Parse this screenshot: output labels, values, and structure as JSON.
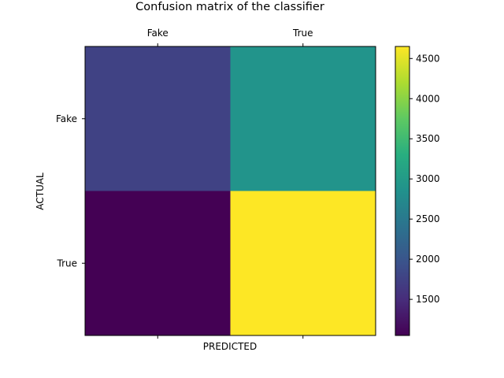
{
  "chart_data": {
    "type": "heatmap",
    "title": "Confusion matrix of the classifier",
    "xlabel": "PREDICTED",
    "ylabel": "ACTUAL",
    "x_categories": [
      "Fake",
      "True"
    ],
    "y_categories": [
      "Fake",
      "True"
    ],
    "values": [
      [
        1750,
        2900
      ],
      [
        1050,
        4650
      ]
    ],
    "colormap": "viridis",
    "colorbar": {
      "range": [
        1050,
        4650
      ],
      "ticks": [
        1500,
        2000,
        2500,
        3000,
        3500,
        4000,
        4500
      ],
      "tick_labels": [
        "1500",
        "2000",
        "2500",
        "3000",
        "3500",
        "4000",
        "4500"
      ]
    }
  }
}
